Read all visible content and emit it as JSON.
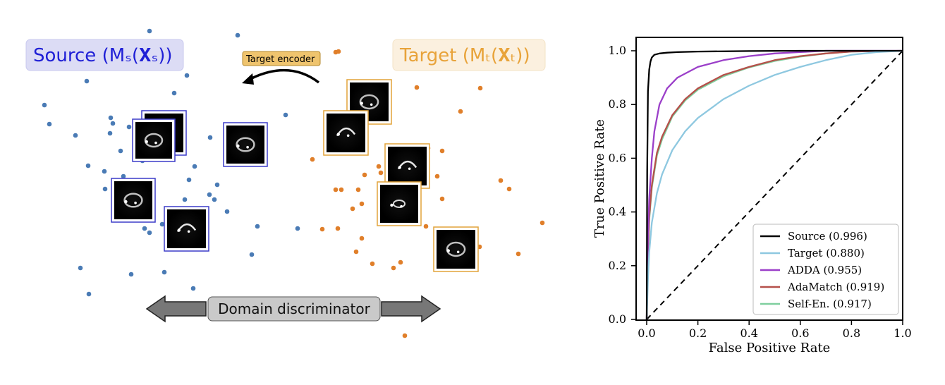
{
  "scatter": {
    "source_title": "Source (Mₛ(𝐗ₛ))",
    "target_title": "Target (Mₜ(𝐗ₜ))",
    "encoder_label": "Target encoder",
    "discriminator_label": "Domain discriminator",
    "source_color": "#4a7bb5",
    "target_color": "#e07f2a",
    "source_box_color": "#3c3cc8",
    "target_box_color": "#e2a43a"
  },
  "chart_data": {
    "type": "line",
    "xlabel": "False Positive Rate",
    "ylabel": "True Positive Rate",
    "xlim": [
      0,
      1
    ],
    "ylim": [
      0,
      1
    ],
    "xticks": [
      "0.0",
      "0.2",
      "0.4",
      "0.6",
      "0.8",
      "1.0"
    ],
    "yticks": [
      "0.0",
      "0.2",
      "0.4",
      "0.6",
      "0.8",
      "1.0"
    ],
    "grid": false,
    "legend_position": "bottom-right",
    "diagonal": "dashed",
    "series": [
      {
        "name": "Source (0.996)",
        "color": "#000000",
        "x": [
          0,
          0.002,
          0.005,
          0.01,
          0.015,
          0.02,
          0.03,
          0.05,
          0.08,
          0.12,
          0.2,
          0.4,
          0.6,
          1.0
        ],
        "y": [
          0,
          0.55,
          0.85,
          0.93,
          0.96,
          0.975,
          0.985,
          0.99,
          0.993,
          0.995,
          0.997,
          0.999,
          1.0,
          1.0
        ]
      },
      {
        "name": "Target (0.880)",
        "color": "#8ec8e0",
        "x": [
          0,
          0.005,
          0.01,
          0.02,
          0.04,
          0.06,
          0.1,
          0.15,
          0.2,
          0.3,
          0.4,
          0.5,
          0.6,
          0.7,
          0.8,
          0.9,
          1.0
        ],
        "y": [
          0,
          0.15,
          0.25,
          0.36,
          0.47,
          0.54,
          0.63,
          0.7,
          0.75,
          0.82,
          0.87,
          0.91,
          0.94,
          0.965,
          0.985,
          0.995,
          1.0
        ]
      },
      {
        "name": "ADDA (0.955)",
        "color": "#9b3fc9",
        "x": [
          0,
          0.005,
          0.01,
          0.02,
          0.03,
          0.05,
          0.08,
          0.12,
          0.2,
          0.3,
          0.4,
          0.5,
          0.6,
          0.7,
          1.0
        ],
        "y": [
          0,
          0.3,
          0.45,
          0.6,
          0.7,
          0.8,
          0.86,
          0.9,
          0.94,
          0.965,
          0.98,
          0.99,
          0.995,
          1.0,
          1.0
        ]
      },
      {
        "name": "AdaMatch (0.919)",
        "color": "#b5504a",
        "x": [
          0,
          0.005,
          0.01,
          0.02,
          0.04,
          0.06,
          0.1,
          0.15,
          0.2,
          0.3,
          0.4,
          0.5,
          0.6,
          0.7,
          0.8,
          1.0
        ],
        "y": [
          0,
          0.25,
          0.38,
          0.5,
          0.62,
          0.68,
          0.76,
          0.82,
          0.86,
          0.91,
          0.94,
          0.965,
          0.98,
          0.99,
          0.997,
          1.0
        ]
      },
      {
        "name": "Self-En. (0.917)",
        "color": "#7fcf9e",
        "x": [
          0,
          0.005,
          0.01,
          0.02,
          0.04,
          0.06,
          0.1,
          0.15,
          0.2,
          0.3,
          0.4,
          0.5,
          0.6,
          0.7,
          0.8,
          1.0
        ],
        "y": [
          0,
          0.24,
          0.37,
          0.49,
          0.61,
          0.67,
          0.755,
          0.815,
          0.855,
          0.905,
          0.938,
          0.962,
          0.978,
          0.99,
          0.997,
          1.0
        ]
      }
    ]
  }
}
